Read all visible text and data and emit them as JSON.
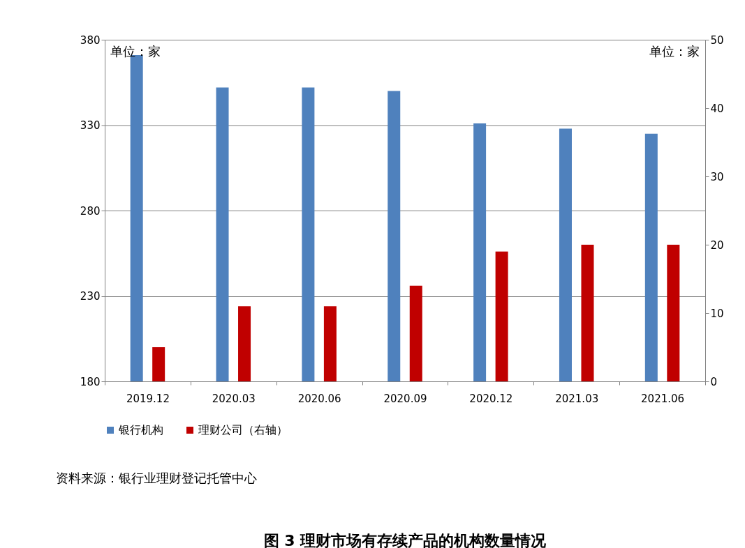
{
  "chart_data": {
    "type": "bar",
    "title": "图 3  理财市场有存续产品的机构数量情况",
    "categories": [
      "2019.12",
      "2020.03",
      "2020.06",
      "2020.09",
      "2020.12",
      "2021.03",
      "2021.06"
    ],
    "series": [
      {
        "name": "银行机构",
        "color": "#4f81bd",
        "values": [
          371,
          352,
          352,
          350,
          331,
          328,
          325
        ]
      },
      {
        "name": "理财公司（右轴）",
        "color": "#c00000",
        "axis": "y2",
        "values": [
          5,
          11,
          11,
          14,
          19,
          20,
          20
        ]
      }
    ],
    "ylim": [
      180,
      380
    ],
    "yticks": [
      180,
      230,
      280,
      330,
      380
    ],
    "y2lim": [
      0,
      50
    ],
    "y2ticks": [
      0,
      10,
      20,
      30,
      40,
      50
    ],
    "grid": "y",
    "legend": "bottom",
    "annotations": [
      "单位：家",
      "单位：家",
      "资料来源：银行业理财登记托管中心"
    ]
  }
}
